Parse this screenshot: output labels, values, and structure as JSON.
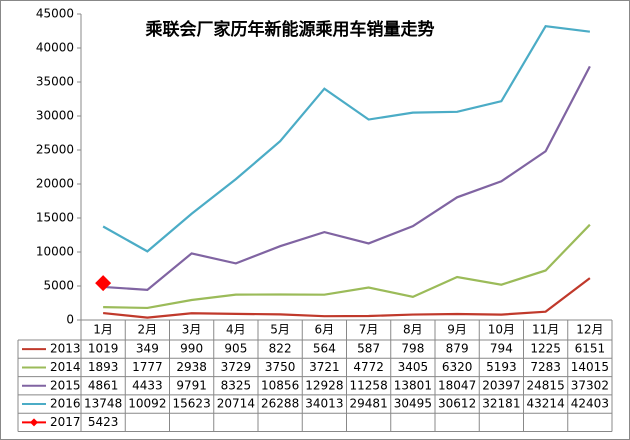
{
  "chart_data": {
    "type": "line",
    "title": "乘联会厂家历年新能源乘用车销量走势",
    "categories": [
      "1月",
      "2月",
      "3月",
      "4月",
      "5月",
      "6月",
      "7月",
      "8月",
      "9月",
      "10月",
      "11月",
      "12月"
    ],
    "series": [
      {
        "name": "2013",
        "color": "#c0392b",
        "values": [
          1019,
          349,
          990,
          905,
          822,
          564,
          587,
          798,
          879,
          794,
          1225,
          6151
        ]
      },
      {
        "name": "2014",
        "color": "#9bbb59",
        "values": [
          1893,
          1777,
          2938,
          3729,
          3750,
          3721,
          4772,
          3405,
          6320,
          5193,
          7283,
          14015
        ]
      },
      {
        "name": "2015",
        "color": "#8064a2",
        "values": [
          4861,
          4433,
          9791,
          8325,
          10856,
          12928,
          11258,
          13801,
          18047,
          20397,
          24815,
          37302
        ]
      },
      {
        "name": "2016",
        "color": "#4bacc6",
        "values": [
          13748,
          10092,
          15623,
          20714,
          26288,
          34013,
          29481,
          30495,
          30612,
          32181,
          43214,
          42403
        ]
      },
      {
        "name": "2017",
        "color": "#ff0000",
        "marker": "diamond",
        "values": [
          5423,
          null,
          null,
          null,
          null,
          null,
          null,
          null,
          null,
          null,
          null,
          null
        ]
      }
    ],
    "ylim": [
      0,
      45000
    ],
    "yticks": [
      0,
      5000,
      10000,
      15000,
      20000,
      25000,
      30000,
      35000,
      40000,
      45000
    ],
    "data_table": true
  }
}
